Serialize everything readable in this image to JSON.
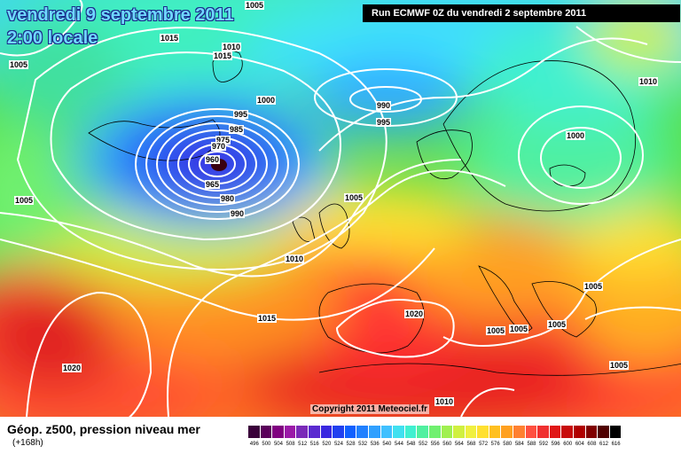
{
  "header": {
    "date": "vendredi 9 septembre 2011",
    "time": "2:00 locale",
    "run": "Run ECMWF 0Z du vendredi 2 septembre 2011"
  },
  "isobars": [
    {
      "id": "i1",
      "label": "1005"
    },
    {
      "id": "i2",
      "label": "1015"
    },
    {
      "id": "i3",
      "label": "1010"
    },
    {
      "id": "i4",
      "label": "1015"
    },
    {
      "id": "i5",
      "label": "1005"
    },
    {
      "id": "i6",
      "label": "1000"
    },
    {
      "id": "i7",
      "label": "990"
    },
    {
      "id": "i8",
      "label": "995"
    },
    {
      "id": "i9",
      "label": "995"
    },
    {
      "id": "i10",
      "label": "985"
    },
    {
      "id": "i11",
      "label": "975"
    },
    {
      "id": "i12",
      "label": "970"
    },
    {
      "id": "i13",
      "label": "960"
    },
    {
      "id": "i14",
      "label": "965"
    },
    {
      "id": "i15",
      "label": "980"
    },
    {
      "id": "i16",
      "label": "990"
    },
    {
      "id": "i17",
      "label": "1010"
    },
    {
      "id": "i18",
      "label": "1000"
    },
    {
      "id": "i19",
      "label": "1005"
    },
    {
      "id": "i20",
      "label": "1005"
    },
    {
      "id": "i21",
      "label": "1010"
    },
    {
      "id": "i22",
      "label": "1015"
    },
    {
      "id": "i23",
      "label": "1020"
    },
    {
      "id": "i24",
      "label": "1005"
    },
    {
      "id": "i25",
      "label": "1005"
    },
    {
      "id": "i26",
      "label": "1005"
    },
    {
      "id": "i27",
      "label": "1005"
    },
    {
      "id": "i28",
      "label": "1005"
    },
    {
      "id": "i29",
      "label": "1020"
    },
    {
      "id": "i30",
      "label": "1010"
    }
  ],
  "copyright": "Copyright 2011 Meteociel.fr",
  "legend": {
    "title": "Géop. z500, pression niveau mer",
    "subtitle": "(+168h)",
    "scale_values": [
      "496",
      "500",
      "504",
      "508",
      "512",
      "516",
      "520",
      "524",
      "528",
      "532",
      "536",
      "540",
      "544",
      "548",
      "552",
      "556",
      "560",
      "564",
      "568",
      "572",
      "576",
      "580",
      "584",
      "588",
      "592",
      "596",
      "600",
      "604",
      "608",
      "612",
      "616"
    ],
    "scale_colors": [
      "#3a003a",
      "#5a005a",
      "#800080",
      "#9b1aa8",
      "#7a2ab8",
      "#5a2ad0",
      "#3a28e0",
      "#2040f0",
      "#1060ff",
      "#2080ff",
      "#30a0ff",
      "#40c0ff",
      "#40e0f0",
      "#40f0d0",
      "#50f0a0",
      "#70f070",
      "#a0f050",
      "#d0f040",
      "#f0f040",
      "#ffe030",
      "#ffc020",
      "#ffa020",
      "#ff8030",
      "#ff5040",
      "#f03030",
      "#e01818",
      "#c80c0c",
      "#b00000",
      "#800000",
      "#500000",
      "#000000"
    ]
  }
}
